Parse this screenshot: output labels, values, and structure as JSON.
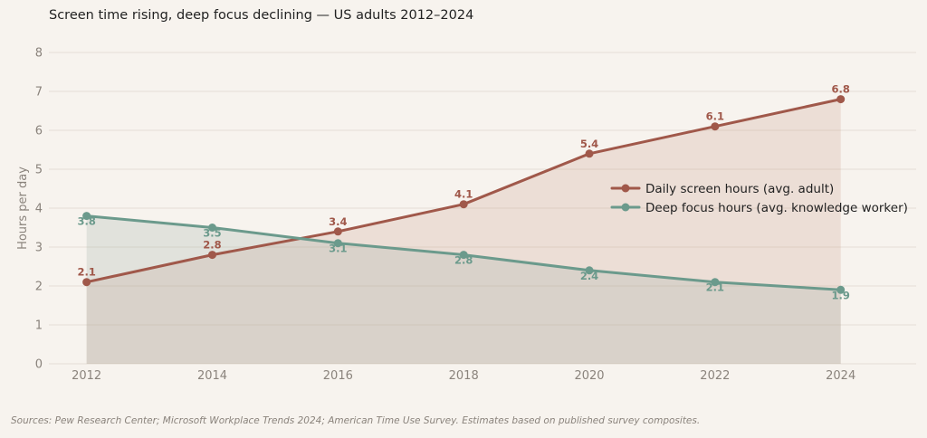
{
  "page": {
    "title": "Screen time rising, deep focus declining — US adults 2012–2024",
    "source": "Sources: Pew Research Center; Microsoft Workplace Trends 2024; American Time Use Survey. Estimates based on published survey composites."
  },
  "chart_data": {
    "type": "line",
    "title": "Screen time rising, deep focus declining — US adults 2012–2024",
    "xlabel": "",
    "ylabel": "Hours per day",
    "x": [
      2012,
      2014,
      2016,
      2018,
      2020,
      2022,
      2024
    ],
    "x_tick_labels": [
      "2012",
      "2014",
      "2016",
      "2018",
      "2020",
      "2022",
      "2024"
    ],
    "y_ticks": [
      0,
      1,
      2,
      3,
      4,
      5,
      6,
      7,
      8
    ],
    "y_tick_labels": [
      "0",
      "1",
      "2",
      "3",
      "4",
      "5",
      "6",
      "7",
      "8"
    ],
    "xlim": [
      2011.4,
      2025.2
    ],
    "ylim": [
      0,
      8
    ],
    "grid": "horizontal",
    "area_fill": true,
    "legend_position": "right",
    "series": [
      {
        "name": "Daily screen hours (avg. adult)",
        "color": "#a0584a",
        "values": [
          2.1,
          2.8,
          3.4,
          4.1,
          5.4,
          6.1,
          6.8
        ],
        "labels": [
          "2.1",
          "2.8",
          "3.4",
          "4.1",
          "5.4",
          "6.1",
          "6.8"
        ],
        "label_position": "above"
      },
      {
        "name": "Deep focus hours (avg. knowledge worker)",
        "color": "#6b9a8c",
        "values": [
          3.8,
          3.5,
          3.1,
          2.8,
          2.4,
          2.1,
          1.9
        ],
        "labels": [
          "3.8",
          "3.5",
          "3.1",
          "2.8",
          "2.4",
          "2.1",
          "1.9"
        ],
        "label_position": "below"
      }
    ]
  }
}
